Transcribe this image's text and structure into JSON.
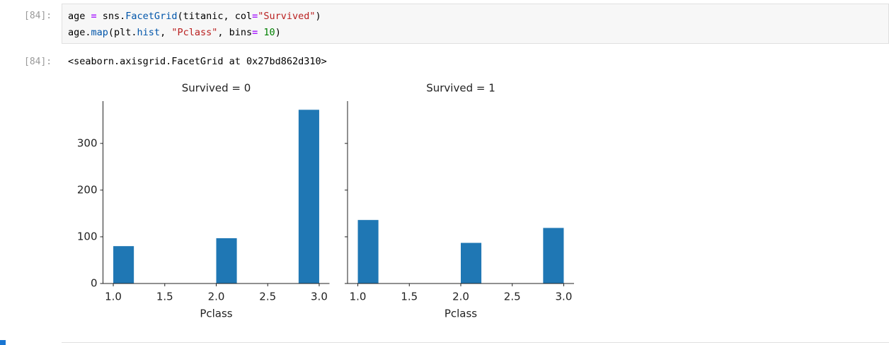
{
  "code_cell": {
    "prompt": "[84]:",
    "lines": [
      {
        "tokens": [
          "age ",
          "=",
          " sns.",
          "FacetGrid",
          "(titanic, col",
          "=",
          "\"Survived\"",
          ")"
        ]
      },
      {
        "tokens": [
          "age.",
          "map",
          "(plt.",
          "hist",
          ", ",
          "\"Pclass\"",
          ", bins",
          "=",
          " ",
          "10",
          ")"
        ]
      }
    ]
  },
  "output_cell": {
    "prompt": "[84]:",
    "text": "<seaborn.axisgrid.FacetGrid at 0x27bd862d310>"
  },
  "chart_data": [
    {
      "type": "histogram",
      "title": "Survived = 0",
      "xlabel": "Pclass",
      "color": "#1f77b4",
      "bins": [
        1,
        1.2,
        1.4,
        1.6,
        1.8,
        2,
        2.2,
        2.4,
        2.6,
        2.8,
        3
      ],
      "values": [
        80,
        0,
        0,
        0,
        0,
        97,
        0,
        0,
        0,
        372
      ],
      "xlim": [
        0.9,
        3.1
      ],
      "ylim": [
        0,
        390.6
      ],
      "xticks": [
        {
          "value": 1,
          "label": "1.0"
        },
        1.5,
        {
          "value": 2,
          "label": "2.0"
        },
        2.5,
        {
          "value": 3,
          "label": "3.0"
        }
      ],
      "yticks": [
        0,
        100,
        200,
        300
      ],
      "show_ytick_labels": true
    },
    {
      "type": "histogram",
      "title": "Survived = 1",
      "xlabel": "Pclass",
      "color": "#1f77b4",
      "bins": [
        1,
        1.2,
        1.4,
        1.6,
        1.8,
        2,
        2.2,
        2.4,
        2.6,
        2.8,
        3
      ],
      "values": [
        136,
        0,
        0,
        0,
        0,
        87,
        0,
        0,
        0,
        119
      ],
      "xlim": [
        0.9,
        3.1
      ],
      "ylim": [
        0,
        390.6
      ],
      "xticks": [
        {
          "value": 1,
          "label": "1.0"
        },
        1.5,
        {
          "value": 2,
          "label": "2.0"
        },
        2.5,
        {
          "value": 3,
          "label": "3.0"
        }
      ],
      "yticks": [
        0,
        100,
        200,
        300
      ],
      "show_ytick_labels": false
    }
  ]
}
